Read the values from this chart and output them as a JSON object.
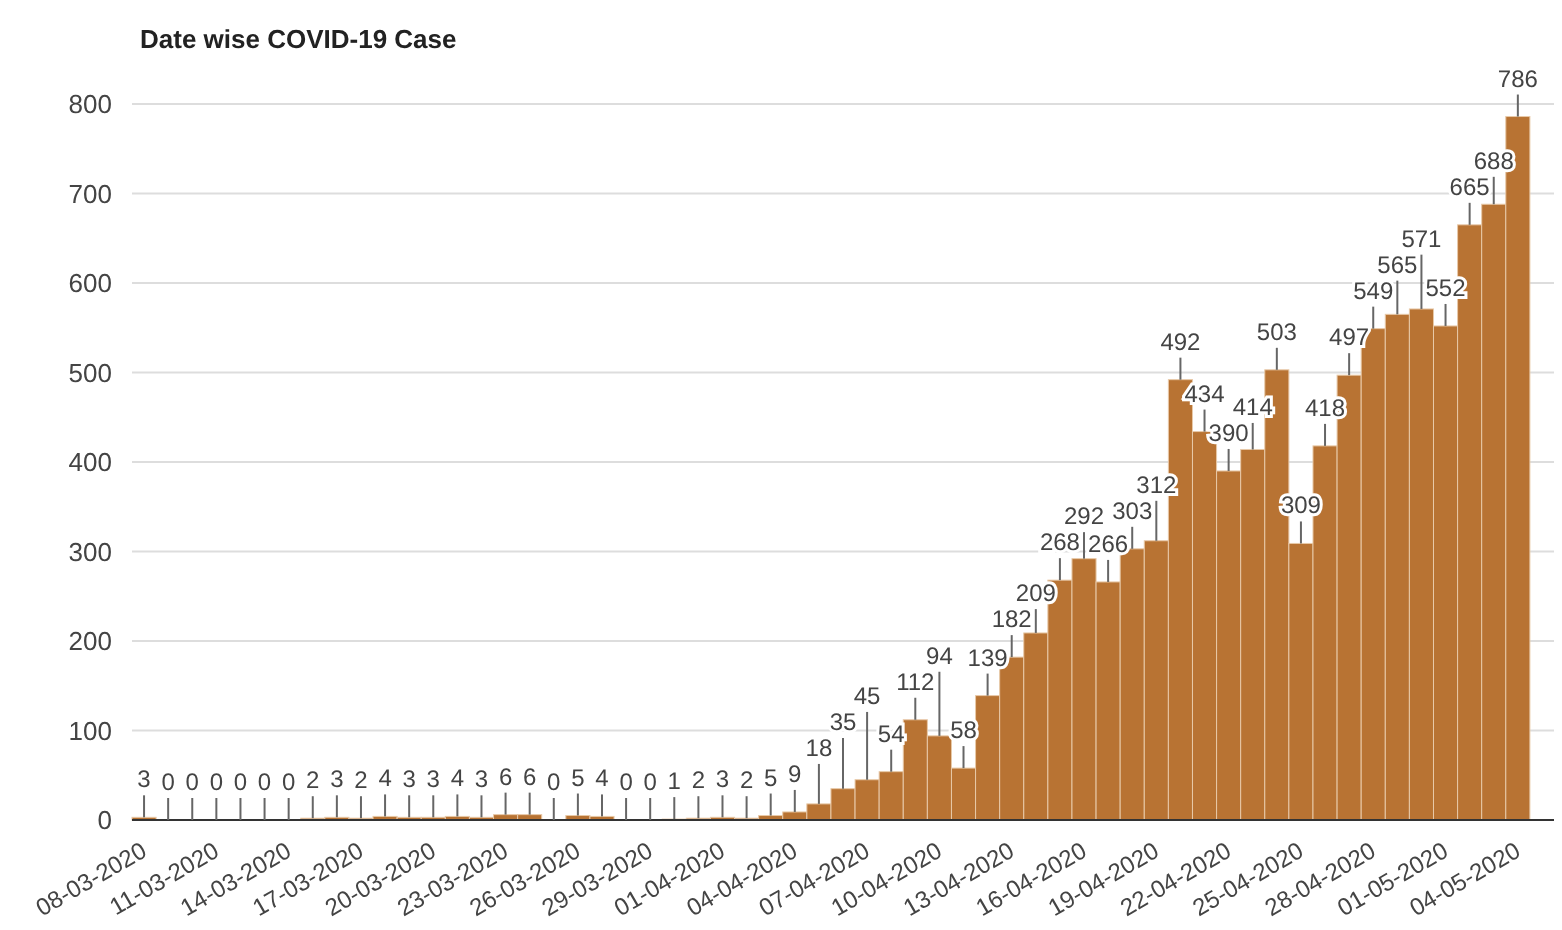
{
  "chart_data": {
    "type": "bar",
    "title": "Date wise COVID-19 Case",
    "categories": [
      "08-03-2020",
      null,
      null,
      "11-03-2020",
      null,
      null,
      "14-03-2020",
      null,
      null,
      "17-03-2020",
      null,
      null,
      "20-03-2020",
      null,
      null,
      "23-03-2020",
      null,
      null,
      "26-03-2020",
      null,
      null,
      "29-03-2020",
      null,
      null,
      "01-04-2020",
      null,
      null,
      "04-04-2020",
      null,
      null,
      "07-04-2020",
      null,
      null,
      "10-04-2020",
      null,
      null,
      "13-04-2020",
      null,
      null,
      "16-04-2020",
      null,
      null,
      "19-04-2020",
      null,
      null,
      "22-04-2020",
      null,
      null,
      "25-04-2020",
      null,
      null,
      "28-04-2020",
      null,
      null,
      "01-05-2020",
      null,
      null,
      "04-05-2020",
      null
    ],
    "values": [
      3,
      0,
      0,
      0,
      0,
      0,
      0,
      2,
      3,
      2,
      4,
      3,
      3,
      4,
      3,
      6,
      6,
      0,
      5,
      4,
      0,
      0,
      1,
      2,
      3,
      2,
      5,
      9,
      18,
      35,
      45,
      54,
      112,
      94,
      58,
      139,
      182,
      209,
      268,
      292,
      266,
      303,
      312,
      492,
      434,
      390,
      414,
      503,
      309,
      418,
      497,
      549,
      565,
      571,
      552,
      665,
      688,
      786,
      null
    ],
    "color": "#b87333",
    "ylim": [
      0,
      800
    ],
    "yticks": [
      0,
      100,
      200,
      300,
      400,
      500,
      600,
      700,
      800
    ],
    "grid": true,
    "data_labels": true
  }
}
